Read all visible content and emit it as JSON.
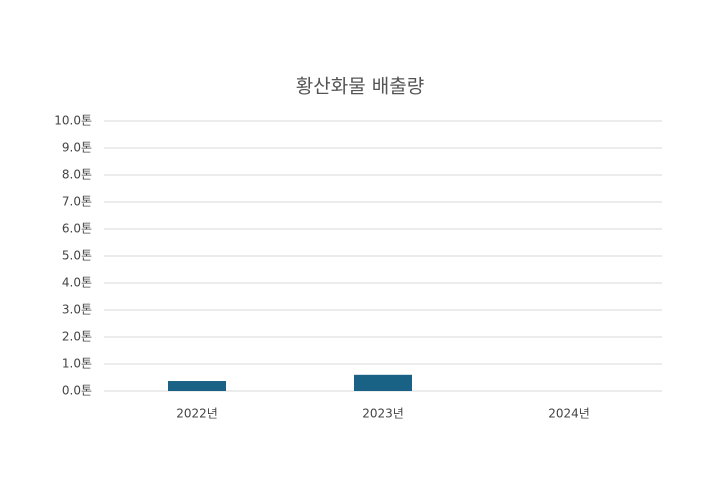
{
  "chart_data": {
    "type": "bar",
    "title": "황산화물 배출량",
    "categories": [
      "2022년",
      "2023년",
      "2024년"
    ],
    "values": [
      0.37,
      0.6,
      0
    ],
    "color": "#1a6285",
    "ylim": [
      0,
      10
    ],
    "yticks": [
      {
        "value": 0,
        "label": "0.0톤"
      },
      {
        "value": 1,
        "label": "1.0톤"
      },
      {
        "value": 2,
        "label": "2.0톤"
      },
      {
        "value": 3,
        "label": "3.0톤"
      },
      {
        "value": 4,
        "label": "4.0톤"
      },
      {
        "value": 5,
        "label": "5.0톤"
      },
      {
        "value": 6,
        "label": "6.0톤"
      },
      {
        "value": 7,
        "label": "7.0톤"
      },
      {
        "value": 8,
        "label": "8.0톤"
      },
      {
        "value": 9,
        "label": "9.0톤"
      },
      {
        "value": 10,
        "label": "10.0톤"
      }
    ],
    "grid": true
  }
}
